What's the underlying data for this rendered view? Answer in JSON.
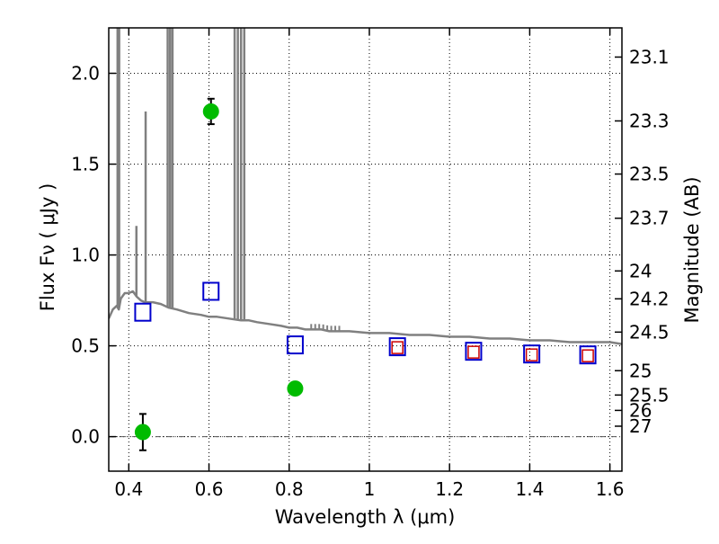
{
  "chart_data": {
    "type": "scatter",
    "title": "",
    "xlabel": "Wavelength  λ (μm)",
    "ylabel": "Flux  Fν  ( μJy )",
    "y2label": "Magnitude (AB)",
    "xlim": [
      0.35,
      1.63
    ],
    "ylim": [
      -0.19,
      2.25
    ],
    "x_ticks": [
      0.4,
      0.6,
      0.8,
      1.0,
      1.2,
      1.4,
      1.6
    ],
    "x_tick_labels": [
      "0.4",
      "0.6",
      "0.8",
      "1",
      "1.2",
      "1.4",
      "1.6"
    ],
    "y_ticks": [
      0.0,
      0.5,
      1.0,
      1.5,
      2.0
    ],
    "y_tick_labels": [
      "0.0",
      "0.5",
      "1.0",
      "1.5",
      "2.0"
    ],
    "magnitude_ticks": [
      "23.1",
      "23.3",
      "23.5",
      "23.7",
      "24",
      "24.2",
      "24.5",
      "25",
      "25.5",
      "26",
      "27"
    ],
    "grid": true,
    "colors": {
      "spectrum": "#808080",
      "observed": "#00bb00",
      "model_box": "#0000cc",
      "model_inner": "#cc0000",
      "errorbar": "#000000",
      "zero_line": "#555555"
    },
    "series": [
      {
        "kind": "spectrum",
        "x": [
          0.35,
          0.36,
          0.37,
          0.375,
          0.38,
          0.39,
          0.4,
          0.41,
          0.42,
          0.43,
          0.44,
          0.46,
          0.48,
          0.5,
          0.52,
          0.55,
          0.58,
          0.6,
          0.62,
          0.65,
          0.68,
          0.7,
          0.72,
          0.75,
          0.78,
          0.8,
          0.82,
          0.84,
          0.86,
          0.88,
          0.9,
          0.95,
          1.0,
          1.05,
          1.1,
          1.15,
          1.2,
          1.25,
          1.3,
          1.35,
          1.4,
          1.45,
          1.5,
          1.55,
          1.6,
          1.63
        ],
        "y": [
          0.65,
          0.7,
          0.72,
          0.7,
          0.76,
          0.79,
          0.79,
          0.8,
          0.77,
          0.75,
          0.74,
          0.74,
          0.73,
          0.71,
          0.7,
          0.68,
          0.67,
          0.66,
          0.66,
          0.65,
          0.64,
          0.64,
          0.63,
          0.62,
          0.61,
          0.6,
          0.6,
          0.59,
          0.59,
          0.59,
          0.58,
          0.58,
          0.57,
          0.57,
          0.56,
          0.56,
          0.55,
          0.55,
          0.54,
          0.54,
          0.53,
          0.53,
          0.52,
          0.52,
          0.52,
          0.51
        ]
      },
      {
        "kind": "emission_lines",
        "lines": [
          {
            "x": 0.372,
            "peak": 2.3
          },
          {
            "x": 0.376,
            "peak": 2.3
          },
          {
            "x": 0.419,
            "peak": 1.16
          },
          {
            "x": 0.442,
            "peak": 1.79
          },
          {
            "x": 0.497,
            "peak": 2.3
          },
          {
            "x": 0.503,
            "peak": 2.3
          },
          {
            "x": 0.509,
            "peak": 2.3
          },
          {
            "x": 0.664,
            "peak": 2.3
          },
          {
            "x": 0.672,
            "peak": 2.3
          },
          {
            "x": 0.68,
            "peak": 2.3
          },
          {
            "x": 0.688,
            "peak": 2.3
          }
        ]
      },
      {
        "kind": "model_photometry",
        "x": [
          0.435,
          0.605,
          0.815,
          1.07,
          1.26,
          1.405,
          1.545
        ],
        "y": [
          0.685,
          0.8,
          0.505,
          0.495,
          0.47,
          0.455,
          0.45
        ]
      },
      {
        "kind": "model_photometry_inner",
        "x": [
          1.07,
          1.26,
          1.405,
          1.545
        ],
        "y": [
          0.49,
          0.465,
          0.45,
          0.445
        ]
      },
      {
        "kind": "observed",
        "x": [
          0.435,
          0.605,
          0.815
        ],
        "y": [
          0.025,
          1.79,
          0.265
        ],
        "yerr": [
          0.1,
          0.07,
          0.035
        ]
      }
    ]
  }
}
